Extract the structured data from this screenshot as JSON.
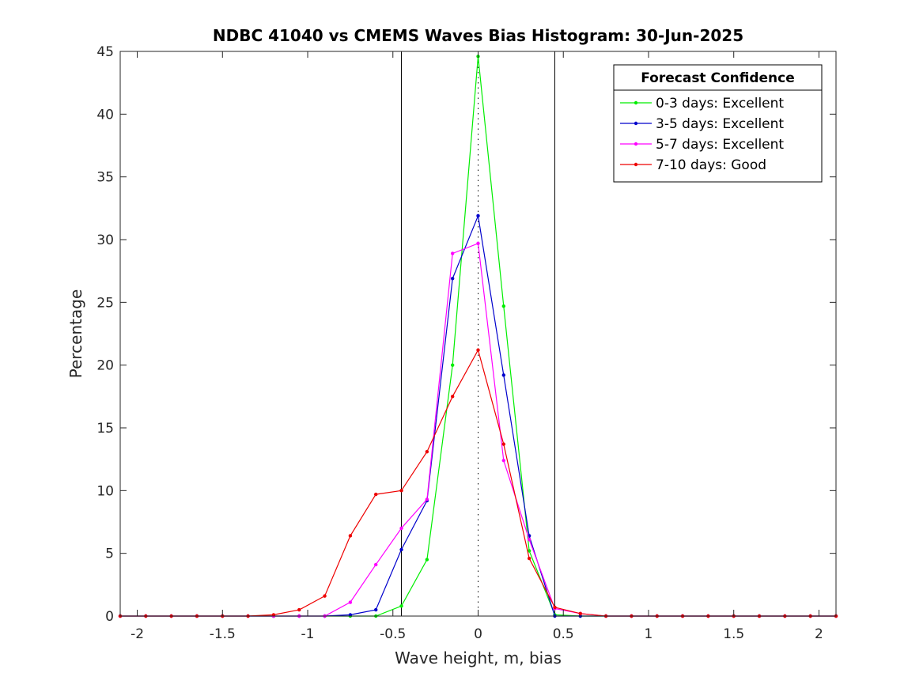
{
  "chart_data": {
    "type": "line",
    "title": "NDBC 41040 vs CMEMS Waves Bias Histogram: 30-Jun-2025",
    "xlabel": "Wave height, m, bias",
    "ylabel": "Percentage",
    "xlim": [
      -2.1,
      2.1
    ],
    "ylim": [
      0,
      45
    ],
    "xticks": [
      -2,
      -1.5,
      -1,
      -0.5,
      0,
      0.5,
      1,
      1.5,
      2
    ],
    "xtick_labels": [
      "-2",
      "-1.5",
      "-1",
      "-0.5",
      "0",
      "0.5",
      "1",
      "1.5",
      "2"
    ],
    "yticks": [
      0,
      5,
      10,
      15,
      20,
      25,
      30,
      35,
      40,
      45
    ],
    "ytick_labels": [
      "0",
      "5",
      "10",
      "15",
      "20",
      "25",
      "30",
      "35",
      "40",
      "45"
    ],
    "grid": false,
    "legend_title": "Forecast Confidence",
    "legend_position": "top-right",
    "reference_lines": {
      "solid_x": [
        -0.45,
        0.45
      ],
      "dotted_x": [
        0
      ]
    },
    "x": [
      -2.1,
      -1.95,
      -1.8,
      -1.65,
      -1.5,
      -1.35,
      -1.2,
      -1.05,
      -0.9,
      -0.75,
      -0.6,
      -0.45,
      -0.3,
      -0.15,
      0,
      0.15,
      0.3,
      0.45,
      0.6,
      0.75,
      0.9,
      1.05,
      1.2,
      1.35,
      1.5,
      1.65,
      1.8,
      1.95,
      2.1
    ],
    "series": [
      {
        "name": "0-3 days: Excellent",
        "color": "#00ee00",
        "values": [
          0,
          0,
          0,
          0,
          0,
          0,
          0,
          0,
          0,
          0,
          0,
          0.8,
          4.5,
          20.0,
          44.6,
          24.7,
          5.2,
          0.1,
          0,
          0,
          0,
          0,
          0,
          0,
          0,
          0,
          0,
          0,
          0
        ]
      },
      {
        "name": "3-5 days: Excellent",
        "color": "#0000cc",
        "values": [
          0,
          0,
          0,
          0,
          0,
          0,
          0,
          0,
          0,
          0.1,
          0.5,
          5.3,
          9.2,
          26.9,
          31.9,
          19.2,
          6.4,
          0,
          0,
          0,
          0,
          0,
          0,
          0,
          0,
          0,
          0,
          0,
          0
        ]
      },
      {
        "name": "5-7 days: Excellent",
        "color": "#ff00ff",
        "values": [
          0,
          0,
          0,
          0,
          0,
          0,
          0,
          0,
          0,
          1.1,
          4.1,
          7.0,
          9.3,
          28.9,
          29.7,
          12.4,
          6.1,
          0.6,
          0.2,
          0,
          0,
          0,
          0,
          0,
          0,
          0,
          0,
          0,
          0
        ]
      },
      {
        "name": "7-10 days: Good",
        "color": "#ee0000",
        "values": [
          0,
          0,
          0,
          0,
          0,
          0,
          0.1,
          0.5,
          1.6,
          6.4,
          9.7,
          10.0,
          13.1,
          17.5,
          21.2,
          13.7,
          4.6,
          0.7,
          0.2,
          0,
          0,
          0,
          0,
          0,
          0,
          0,
          0,
          0,
          0
        ]
      }
    ]
  }
}
